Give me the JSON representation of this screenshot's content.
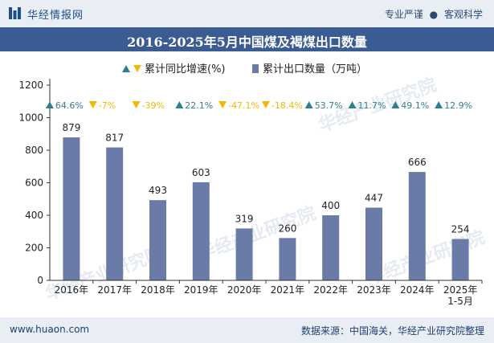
{
  "header": {
    "brand": "华经情报网",
    "tagline_left": "专业严谨",
    "tagline_sep": "●",
    "tagline_right": "客观科学"
  },
  "footer": {
    "url": "www.huaon.com",
    "source": "数据来源：中国海关，华经产业研究院整理"
  },
  "colors": {
    "bar": "#6b7ba7",
    "up": "#2f7f8f",
    "down": "#f5b800",
    "title_bg": "#3a5c93"
  },
  "chart_data": {
    "type": "bar",
    "title": "2016-2025年5月中国煤及褐煤出口数量",
    "categories": [
      "2016年",
      "2017年",
      "2018年",
      "2019年",
      "2020年",
      "2021年",
      "2022年",
      "2023年",
      "2024年",
      "2025年\n1-5月"
    ],
    "series": [
      {
        "name": "累计出口数量（万吨）",
        "values": [
          879,
          817,
          493,
          603,
          319,
          260,
          400,
          447,
          666,
          254
        ]
      },
      {
        "name": "累计同比增速(%)",
        "values": [
          64.6,
          -7,
          -39,
          22.1,
          -47.1,
          -18.4,
          53.7,
          11.7,
          49.1,
          12.9
        ]
      }
    ],
    "growth_labels": [
      "64.6%",
      "-7%",
      "-39%",
      "22.1%",
      "-47.1%",
      "-18.4%",
      "53.7%",
      "11.7%",
      "49.1%",
      "12.9%"
    ],
    "ylim": [
      0,
      1200
    ],
    "yticks": [
      0,
      200,
      400,
      600,
      800,
      1000,
      1200
    ],
    "legend": {
      "growth": "累计同比增速(%)",
      "volume": "累计出口数量（万吨）"
    },
    "watermark": "华经产业研究院"
  }
}
